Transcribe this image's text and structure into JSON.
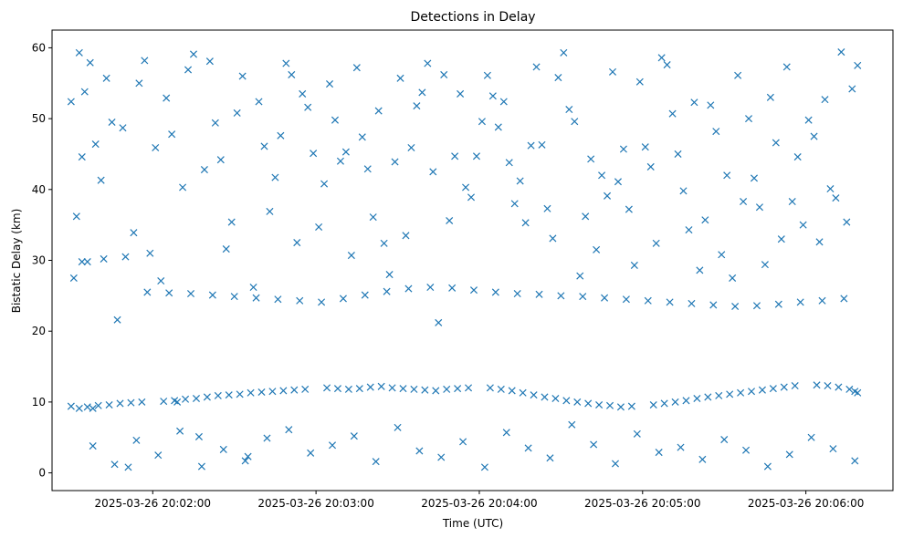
{
  "chart_data": {
    "type": "scatter",
    "title": "Detections in Delay",
    "xlabel": "Time (UTC)",
    "ylabel": "Bistatic Delay (km)",
    "x_axis": {
      "type": "datetime",
      "range": [
        "2025-03-26 20:01:23",
        "2025-03-26 20:06:32"
      ],
      "ticks": [
        {
          "value": "2025-03-26 20:02:00",
          "label": "2025-03-26 20:02:00"
        },
        {
          "value": "2025-03-26 20:03:00",
          "label": "2025-03-26 20:03:00"
        },
        {
          "value": "2025-03-26 20:04:00",
          "label": "2025-03-26 20:04:00"
        },
        {
          "value": "2025-03-26 20:05:00",
          "label": "2025-03-26 20:05:00"
        },
        {
          "value": "2025-03-26 20:06:00",
          "label": "2025-03-26 20:06:00"
        }
      ]
    },
    "y_axis": {
      "range": [
        -2.5,
        62.5
      ],
      "ticks": [
        {
          "value": 0,
          "label": "0"
        },
        {
          "value": 10,
          "label": "10"
        },
        {
          "value": 20,
          "label": "20"
        },
        {
          "value": 30,
          "label": "30"
        },
        {
          "value": 40,
          "label": "40"
        },
        {
          "value": 50,
          "label": "50"
        },
        {
          "value": 60,
          "label": "60"
        }
      ]
    },
    "grid": false,
    "marker": "x",
    "color": "#1f77b4",
    "series": [
      {
        "x": [
          "2025-03-26 20:01:30",
          "2025-03-26 20:01:31",
          "2025-03-26 20:01:32",
          "2025-03-26 20:01:33",
          "2025-03-26 20:01:34",
          "2025-03-26 20:01:35",
          "2025-03-26 20:01:36",
          "2025-03-26 20:01:37",
          "2025-03-26 20:01:38",
          "2025-03-26 20:01:39",
          "2025-03-26 20:01:41",
          "2025-03-26 20:01:43",
          "2025-03-26 20:01:45",
          "2025-03-26 20:01:47",
          "2025-03-26 20:01:49",
          "2025-03-26 20:01:51",
          "2025-03-26 20:01:53",
          "2025-03-26 20:01:55",
          "2025-03-26 20:01:57",
          "2025-03-26 20:01:59",
          "2025-03-26 20:02:01",
          "2025-03-26 20:02:03",
          "2025-03-26 20:02:05",
          "2025-03-26 20:02:07",
          "2025-03-26 20:02:09",
          "2025-03-26 20:02:11",
          "2025-03-26 20:02:13",
          "2025-03-26 20:02:15",
          "2025-03-26 20:02:17",
          "2025-03-26 20:02:19",
          "2025-03-26 20:02:21",
          "2025-03-26 20:02:23",
          "2025-03-26 20:02:25",
          "2025-03-26 20:02:27",
          "2025-03-26 20:02:29",
          "2025-03-26 20:02:31",
          "2025-03-26 20:02:33",
          "2025-03-26 20:02:35",
          "2025-03-26 20:02:37",
          "2025-03-26 20:02:39",
          "2025-03-26 20:02:41",
          "2025-03-26 20:02:43",
          "2025-03-26 20:02:45",
          "2025-03-26 20:02:47",
          "2025-03-26 20:02:49",
          "2025-03-26 20:02:51",
          "2025-03-26 20:02:53",
          "2025-03-26 20:02:55",
          "2025-03-26 20:02:57",
          "2025-03-26 20:02:59",
          "2025-03-26 20:03:01",
          "2025-03-26 20:03:03",
          "2025-03-26 20:03:05",
          "2025-03-26 20:03:07",
          "2025-03-26 20:03:09",
          "2025-03-26 20:03:11",
          "2025-03-26 20:03:13",
          "2025-03-26 20:03:15",
          "2025-03-26 20:03:17",
          "2025-03-26 20:03:19",
          "2025-03-26 20:03:21",
          "2025-03-26 20:03:23",
          "2025-03-26 20:03:25",
          "2025-03-26 20:03:27",
          "2025-03-26 20:03:29",
          "2025-03-26 20:03:31",
          "2025-03-26 20:03:33",
          "2025-03-26 20:03:35",
          "2025-03-26 20:03:37",
          "2025-03-26 20:03:39",
          "2025-03-26 20:03:41",
          "2025-03-26 20:03:43",
          "2025-03-26 20:03:45",
          "2025-03-26 20:03:47",
          "2025-03-26 20:03:49",
          "2025-03-26 20:03:51",
          "2025-03-26 20:03:53",
          "2025-03-26 20:03:55",
          "2025-03-26 20:03:57",
          "2025-03-26 20:03:59",
          "2025-03-26 20:04:01",
          "2025-03-26 20:04:03",
          "2025-03-26 20:04:05",
          "2025-03-26 20:04:07",
          "2025-03-26 20:04:09",
          "2025-03-26 20:04:11",
          "2025-03-26 20:04:13",
          "2025-03-26 20:04:15",
          "2025-03-26 20:04:17",
          "2025-03-26 20:04:19",
          "2025-03-26 20:04:21",
          "2025-03-26 20:04:23",
          "2025-03-26 20:04:25",
          "2025-03-26 20:04:27",
          "2025-03-26 20:04:29",
          "2025-03-26 20:04:31",
          "2025-03-26 20:04:33",
          "2025-03-26 20:04:35",
          "2025-03-26 20:04:37",
          "2025-03-26 20:04:39",
          "2025-03-26 20:04:41",
          "2025-03-26 20:04:43",
          "2025-03-26 20:04:45",
          "2025-03-26 20:04:47",
          "2025-03-26 20:04:49",
          "2025-03-26 20:04:51",
          "2025-03-26 20:04:53",
          "2025-03-26 20:04:55",
          "2025-03-26 20:04:57",
          "2025-03-26 20:04:59",
          "2025-03-26 20:05:01",
          "2025-03-26 20:05:03",
          "2025-03-26 20:05:05",
          "2025-03-26 20:05:07",
          "2025-03-26 20:05:09",
          "2025-03-26 20:05:11",
          "2025-03-26 20:05:13",
          "2025-03-26 20:05:15",
          "2025-03-26 20:05:17",
          "2025-03-26 20:05:19",
          "2025-03-26 20:05:21",
          "2025-03-26 20:05:23",
          "2025-03-26 20:05:25",
          "2025-03-26 20:05:27",
          "2025-03-26 20:05:29",
          "2025-03-26 20:05:31",
          "2025-03-26 20:05:33",
          "2025-03-26 20:05:35",
          "2025-03-26 20:05:37",
          "2025-03-26 20:05:39",
          "2025-03-26 20:05:41",
          "2025-03-26 20:05:43",
          "2025-03-26 20:05:45",
          "2025-03-26 20:05:47",
          "2025-03-26 20:05:49",
          "2025-03-26 20:05:51",
          "2025-03-26 20:05:53",
          "2025-03-26 20:05:55",
          "2025-03-26 20:05:57",
          "2025-03-26 20:05:59",
          "2025-03-26 20:06:01",
          "2025-03-26 20:06:03",
          "2025-03-26 20:06:05",
          "2025-03-26 20:06:07",
          "2025-03-26 20:06:09",
          "2025-03-26 20:06:11",
          "2025-03-26 20:06:13",
          "2025-03-26 20:06:15",
          "2025-03-26 20:06:17",
          "2025-03-26 20:06:19",
          "2025-03-26 20:01:30",
          "2025-03-26 20:01:33",
          "2025-03-26 20:01:36",
          "2025-03-26 20:01:40",
          "2025-03-26 20:01:44",
          "2025-03-26 20:01:48",
          "2025-03-26 20:01:52",
          "2025-03-26 20:01:56",
          "2025-03-26 20:02:04",
          "2025-03-26 20:02:08",
          "2025-03-26 20:02:12",
          "2025-03-26 20:02:16",
          "2025-03-26 20:02:20",
          "2025-03-26 20:02:24",
          "2025-03-26 20:02:28",
          "2025-03-26 20:02:32",
          "2025-03-26 20:02:36",
          "2025-03-26 20:02:40",
          "2025-03-26 20:02:44",
          "2025-03-26 20:02:48",
          "2025-03-26 20:02:52",
          "2025-03-26 20:02:56",
          "2025-03-26 20:03:04",
          "2025-03-26 20:03:08",
          "2025-03-26 20:03:12",
          "2025-03-26 20:03:16",
          "2025-03-26 20:03:20",
          "2025-03-26 20:03:24",
          "2025-03-26 20:03:28",
          "2025-03-26 20:03:32",
          "2025-03-26 20:03:36",
          "2025-03-26 20:03:40",
          "2025-03-26 20:03:44",
          "2025-03-26 20:03:48",
          "2025-03-26 20:03:52",
          "2025-03-26 20:03:56",
          "2025-03-26 20:04:04",
          "2025-03-26 20:04:08",
          "2025-03-26 20:04:12",
          "2025-03-26 20:04:16",
          "2025-03-26 20:04:20",
          "2025-03-26 20:04:24",
          "2025-03-26 20:04:28",
          "2025-03-26 20:04:32",
          "2025-03-26 20:04:36",
          "2025-03-26 20:04:40",
          "2025-03-26 20:04:44",
          "2025-03-26 20:04:48",
          "2025-03-26 20:04:52",
          "2025-03-26 20:04:56",
          "2025-03-26 20:05:04",
          "2025-03-26 20:05:08",
          "2025-03-26 20:05:12",
          "2025-03-26 20:05:16",
          "2025-03-26 20:05:20",
          "2025-03-26 20:05:24",
          "2025-03-26 20:05:28",
          "2025-03-26 20:05:32",
          "2025-03-26 20:05:36",
          "2025-03-26 20:05:40",
          "2025-03-26 20:05:44",
          "2025-03-26 20:05:48",
          "2025-03-26 20:05:52",
          "2025-03-26 20:05:56",
          "2025-03-26 20:06:04",
          "2025-03-26 20:06:08",
          "2025-03-26 20:06:12",
          "2025-03-26 20:06:16",
          "2025-03-26 20:06:18",
          "2025-03-26 20:06:19",
          "2025-03-26 20:01:34",
          "2025-03-26 20:01:42",
          "2025-03-26 20:01:50",
          "2025-03-26 20:01:58",
          "2025-03-26 20:02:06",
          "2025-03-26 20:02:14",
          "2025-03-26 20:02:22",
          "2025-03-26 20:02:30",
          "2025-03-26 20:02:38",
          "2025-03-26 20:02:46",
          "2025-03-26 20:02:54",
          "2025-03-26 20:03:02",
          "2025-03-26 20:03:10",
          "2025-03-26 20:03:18",
          "2025-03-26 20:03:26",
          "2025-03-26 20:03:34",
          "2025-03-26 20:03:42",
          "2025-03-26 20:03:50",
          "2025-03-26 20:03:58",
          "2025-03-26 20:04:06",
          "2025-03-26 20:04:14",
          "2025-03-26 20:04:22",
          "2025-03-26 20:04:30",
          "2025-03-26 20:04:38",
          "2025-03-26 20:04:46",
          "2025-03-26 20:04:54",
          "2025-03-26 20:05:02",
          "2025-03-26 20:05:10",
          "2025-03-26 20:05:18",
          "2025-03-26 20:05:26",
          "2025-03-26 20:05:34",
          "2025-03-26 20:05:42",
          "2025-03-26 20:05:50",
          "2025-03-26 20:05:58",
          "2025-03-26 20:06:06",
          "2025-03-26 20:06:14",
          "2025-03-26 20:01:38",
          "2025-03-26 20:01:46",
          "2025-03-26 20:01:54",
          "2025-03-26 20:02:02",
          "2025-03-26 20:02:10",
          "2025-03-26 20:02:18",
          "2025-03-26 20:02:26",
          "2025-03-26 20:02:34",
          "2025-03-26 20:02:42",
          "2025-03-26 20:02:50",
          "2025-03-26 20:02:58",
          "2025-03-26 20:03:06",
          "2025-03-26 20:03:14",
          "2025-03-26 20:03:22",
          "2025-03-26 20:03:30",
          "2025-03-26 20:03:38",
          "2025-03-26 20:03:46",
          "2025-03-26 20:03:54",
          "2025-03-26 20:04:02",
          "2025-03-26 20:04:10",
          "2025-03-26 20:04:18",
          "2025-03-26 20:04:26",
          "2025-03-26 20:04:34",
          "2025-03-26 20:04:42",
          "2025-03-26 20:04:50",
          "2025-03-26 20:04:58",
          "2025-03-26 20:05:06",
          "2025-03-26 20:05:14",
          "2025-03-26 20:05:22",
          "2025-03-26 20:05:30",
          "2025-03-26 20:05:38",
          "2025-03-26 20:05:46",
          "2025-03-26 20:05:54",
          "2025-03-26 20:06:02",
          "2025-03-26 20:06:10",
          "2025-03-26 20:06:18"
        ],
        "y": [
          52.4,
          27.5,
          36.2,
          59.3,
          44.6,
          53.8,
          29.8,
          57.9,
          9.1,
          46.4,
          41.3,
          55.7,
          49.5,
          21.6,
          48.7,
          0.8,
          33.9,
          55.0,
          58.2,
          31.0,
          45.9,
          27.1,
          52.9,
          47.8,
          10.0,
          40.3,
          56.9,
          59.1,
          5.1,
          42.8,
          58.1,
          49.4,
          44.2,
          31.6,
          35.4,
          50.8,
          56.0,
          2.3,
          26.2,
          52.4,
          46.1,
          36.9,
          41.7,
          47.6,
          57.8,
          56.2,
          32.5,
          53.5,
          51.6,
          45.1,
          34.7,
          40.8,
          54.9,
          49.8,
          44.0,
          45.3,
          30.7,
          57.2,
          47.4,
          42.9,
          36.1,
          51.1,
          32.4,
          28.0,
          43.9,
          55.7,
          33.5,
          45.9,
          51.8,
          53.7,
          57.8,
          42.5,
          21.2,
          56.2,
          35.6,
          44.7,
          53.5,
          40.3,
          38.9,
          44.7,
          49.6,
          56.1,
          53.2,
          48.8,
          52.4,
          43.8,
          38.0,
          41.2,
          35.3,
          46.2,
          57.3,
          46.3,
          37.3,
          33.1,
          55.8,
          59.3,
          51.3,
          49.6,
          27.8,
          36.2,
          44.3,
          31.5,
          42.0,
          39.1,
          56.6,
          41.1,
          45.7,
          37.2,
          29.3,
          55.2,
          46.0,
          43.2,
          32.4,
          58.6,
          57.6,
          50.7,
          45.0,
          39.8,
          34.3,
          52.3,
          28.6,
          35.7,
          51.9,
          48.2,
          30.8,
          42.0,
          27.5,
          56.1,
          38.3,
          50.0,
          41.6,
          37.5,
          29.4,
          53.0,
          46.6,
          33.0,
          57.3,
          38.3,
          44.6,
          35.0,
          49.8,
          47.5,
          32.6,
          52.7,
          40.1,
          38.8,
          59.4,
          35.4,
          54.2,
          57.5,
          9.4,
          9.1,
          9.3,
          9.5,
          9.6,
          9.8,
          9.9,
          10.0,
          10.1,
          10.2,
          10.4,
          10.5,
          10.7,
          10.9,
          11.0,
          11.1,
          11.3,
          11.4,
          11.5,
          11.6,
          11.7,
          11.8,
          12.0,
          11.9,
          11.8,
          11.9,
          12.1,
          12.2,
          12.0,
          11.9,
          11.8,
          11.7,
          11.6,
          11.8,
          11.9,
          12.0,
          12.0,
          11.8,
          11.6,
          11.3,
          11.0,
          10.7,
          10.5,
          10.2,
          10.0,
          9.8,
          9.6,
          9.5,
          9.3,
          9.4,
          9.6,
          9.8,
          10.0,
          10.2,
          10.5,
          10.7,
          10.9,
          11.1,
          11.3,
          11.5,
          11.7,
          11.9,
          12.1,
          12.3,
          12.4,
          12.3,
          12.1,
          11.8,
          11.5,
          11.3,
          29.8,
          30.2,
          30.5,
          25.5,
          25.4,
          25.3,
          25.1,
          24.9,
          24.7,
          24.5,
          24.3,
          24.1,
          24.6,
          25.1,
          25.6,
          26.0,
          26.2,
          26.1,
          25.8,
          25.5,
          25.3,
          25.2,
          25.0,
          24.9,
          24.7,
          24.5,
          24.3,
          24.1,
          23.9,
          23.7,
          23.5,
          23.6,
          23.8,
          24.1,
          24.3,
          24.6,
          3.8,
          1.2,
          4.6,
          2.5,
          5.9,
          0.9,
          3.3,
          1.7,
          4.9,
          6.1,
          2.8,
          3.9,
          5.2,
          1.6,
          6.4,
          3.1,
          2.2,
          4.4,
          0.8,
          5.7,
          3.5,
          2.1,
          6.8,
          4.0,
          1.3,
          5.5,
          2.9,
          3.6,
          1.9,
          4.7,
          3.2,
          0.9,
          2.6,
          5.0,
          3.4,
          1.7
        ]
      }
    ]
  }
}
